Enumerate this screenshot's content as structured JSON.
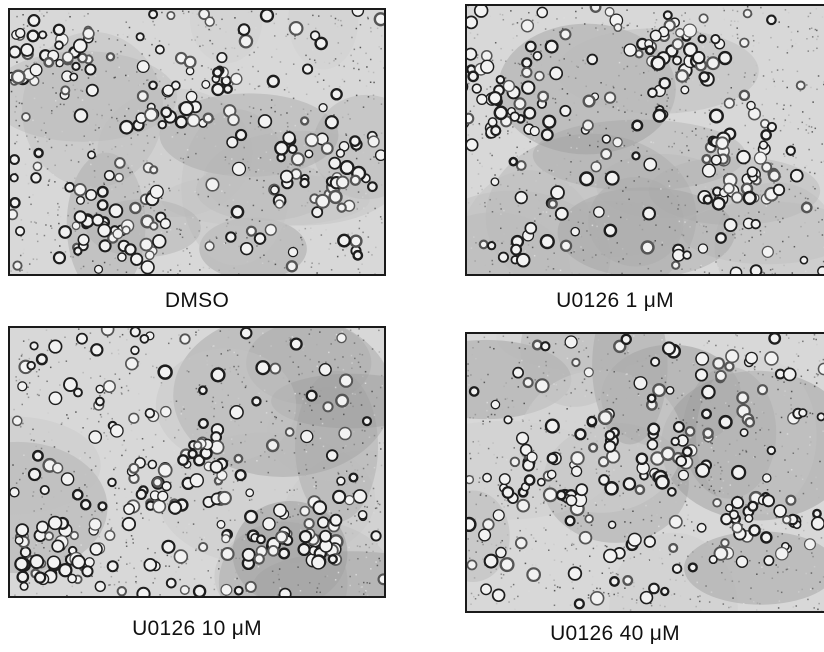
{
  "figure": {
    "panels": [
      {
        "caption": "DMSO"
      },
      {
        "caption": "U0126 1 μM"
      },
      {
        "caption": "U0126 10 μM"
      },
      {
        "caption": "U0126 40 μM"
      }
    ]
  }
}
